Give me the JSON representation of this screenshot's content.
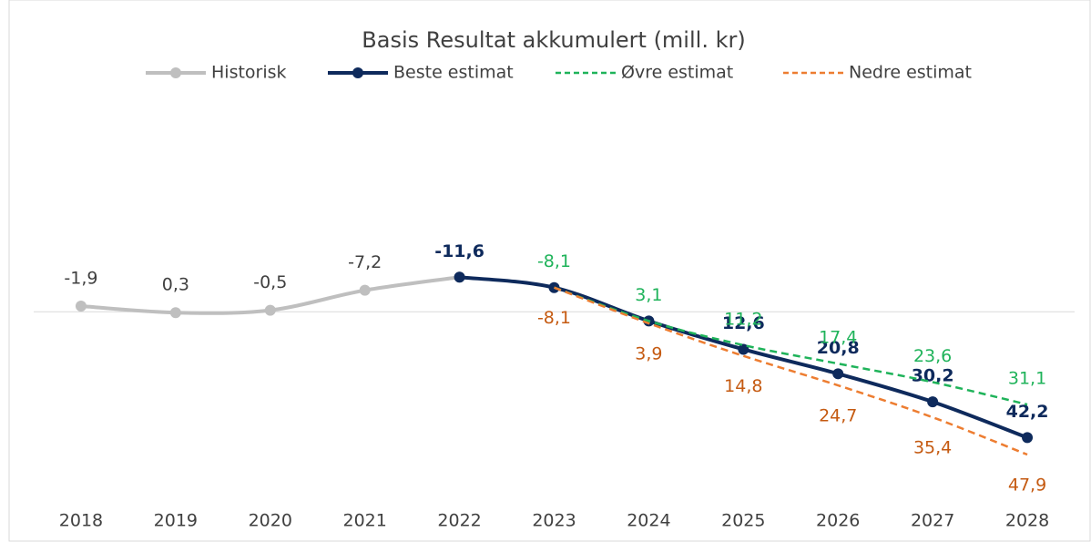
{
  "chart_data": {
    "type": "line",
    "title": "Basis Resultat akkumulert (mill. kr)",
    "categories": [
      "2018",
      "2019",
      "2020",
      "2021",
      "2022",
      "2023",
      "2024",
      "2025",
      "2026",
      "2027",
      "2028"
    ],
    "ylim": [
      65,
      -74
    ],
    "legend": "top",
    "series": [
      {
        "name": "Historisk",
        "color": "#bfbfbf",
        "markers": true,
        "dashed": false,
        "values": [
          -1.9,
          0.3,
          -0.5,
          -7.2,
          -11.6,
          null,
          null,
          null,
          null,
          null,
          null
        ],
        "value_labels": [
          "-1,9",
          "0,3",
          "-0,5",
          "-7,2",
          null,
          null,
          null,
          null,
          null,
          null,
          null
        ]
      },
      {
        "name": "Beste estimat",
        "color": "#0e2a5c",
        "markers": true,
        "dashed": false,
        "values": [
          null,
          null,
          null,
          null,
          -11.6,
          -8.1,
          3.1,
          12.6,
          20.8,
          30.2,
          42.2
        ],
        "value_labels": [
          null,
          null,
          null,
          null,
          "-11,6",
          null,
          null,
          "12,6",
          "20,8",
          "30,2",
          "42,2"
        ]
      },
      {
        "name": "Øvre estimat",
        "color": "#1fb35a",
        "markers": false,
        "dashed": true,
        "values": [
          null,
          null,
          null,
          null,
          null,
          -8.1,
          3.1,
          11.2,
          17.4,
          23.6,
          31.1
        ],
        "value_labels": [
          null,
          null,
          null,
          null,
          null,
          "-8,1",
          "3,1",
          "11,2",
          "17,4",
          "23,6",
          "31,1"
        ]
      },
      {
        "name": "Nedre estimat",
        "color": "#ed7d31",
        "markers": false,
        "dashed": true,
        "values": [
          null,
          null,
          null,
          null,
          null,
          -8.1,
          3.9,
          14.8,
          24.7,
          35.4,
          47.9
        ],
        "value_labels": [
          null,
          null,
          null,
          null,
          null,
          "-8,1",
          "3,9",
          "14,8",
          "24,7",
          "35,4",
          "47,9"
        ]
      }
    ]
  }
}
